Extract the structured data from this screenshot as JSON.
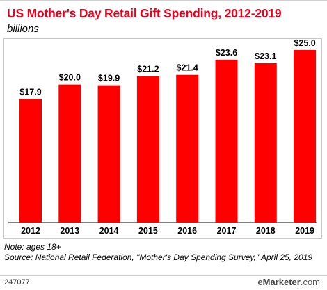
{
  "header": {
    "title": "US Mother's Day Retail Gift Spending, 2012-2019",
    "subtitle": "billions"
  },
  "chart_data": {
    "type": "bar",
    "title": "US Mother's Day Retail Gift Spending, 2012-2019",
    "subtitle": "billions",
    "xlabel": "",
    "ylabel": "",
    "categories": [
      "2012",
      "2013",
      "2014",
      "2015",
      "2016",
      "2017",
      "2018",
      "2019"
    ],
    "values": [
      17.9,
      20.0,
      19.9,
      21.2,
      21.4,
      23.6,
      23.1,
      25.0
    ],
    "value_labels": [
      "$17.9",
      "$20.0",
      "$19.9",
      "$21.2",
      "$21.4",
      "$23.6",
      "$23.1",
      "$25.0"
    ],
    "ylim": [
      0,
      25.0
    ],
    "grid": false,
    "bar_color": "#ff0000"
  },
  "footer": {
    "note": "Note: ages 18+",
    "source": "Source: National Retail Federation, \"Mother's Day Spending Survey,\" April 25, 2019",
    "chart_id": "247077",
    "brand_e": "e",
    "brand_rest": "Marketer",
    "brand_suffix": ".com"
  }
}
